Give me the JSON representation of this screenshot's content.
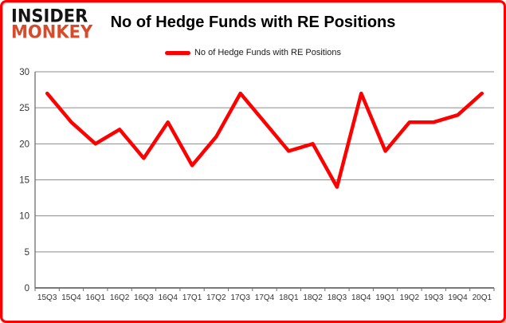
{
  "header": {
    "logo_line1": "INSIDER",
    "logo_line2": "MONKEY",
    "title": "No of Hedge Funds with RE Positions"
  },
  "legend": {
    "label": "No of Hedge Funds with RE Positions"
  },
  "chart_data": {
    "type": "line",
    "title": "No of Hedge Funds with RE Positions",
    "series_name": "No of Hedge Funds with RE Positions",
    "categories": [
      "15Q3",
      "15Q4",
      "16Q1",
      "16Q2",
      "16Q3",
      "16Q4",
      "17Q1",
      "17Q2",
      "17Q3",
      "17Q4",
      "18Q1",
      "18Q2",
      "18Q3",
      "18Q4",
      "19Q1",
      "19Q2",
      "19Q3",
      "19Q4",
      "20Q1"
    ],
    "values": [
      27,
      23,
      20,
      22,
      18,
      23,
      17,
      21,
      27,
      23,
      19,
      20,
      14,
      27,
      19,
      23,
      23,
      24,
      27
    ],
    "xlabel": "",
    "ylabel": "",
    "ylim": [
      0,
      30
    ],
    "yticks": [
      0,
      5,
      10,
      15,
      20,
      25,
      30
    ],
    "grid": true,
    "legend_position": "top-center",
    "line_color": "#ff0000",
    "gridline_color": "#8c8c8c",
    "axis_color": "#6e6e6e",
    "tick_label_color": "#333333"
  },
  "colors": {
    "frame_border": "#ff0000",
    "logo_top": "#141414",
    "logo_bottom": "#d84b2a",
    "background": "#ffffff"
  }
}
